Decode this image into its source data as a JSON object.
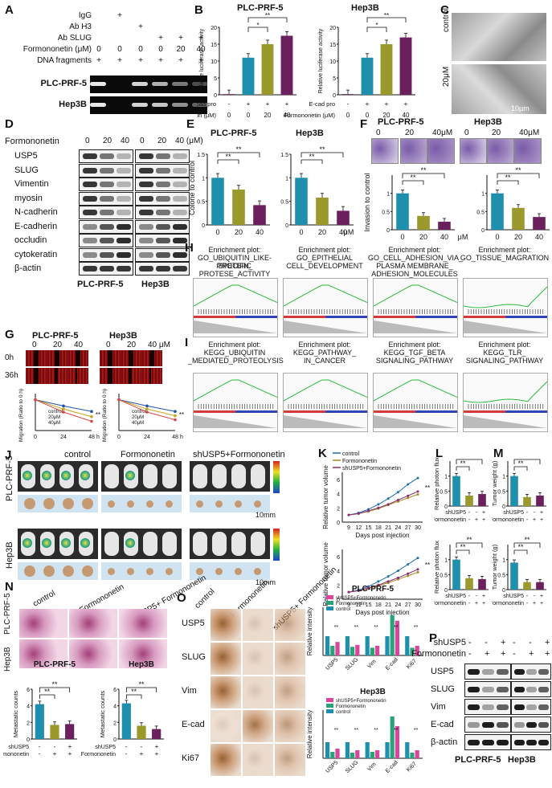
{
  "panels": {
    "A": {
      "label": "A",
      "rows": [
        {
          "name": "IgG",
          "vals": [
            "",
            "+",
            "",
            "",
            "",
            ""
          ]
        },
        {
          "name": "Ab H3",
          "vals": [
            "",
            "",
            "+",
            "",
            "",
            ""
          ]
        },
        {
          "name": "Ab SLUG",
          "vals": [
            "",
            "",
            "",
            "+",
            "+",
            "+"
          ]
        },
        {
          "name": "Formononetin (μM)",
          "vals": [
            "0",
            "0",
            "0",
            "0",
            "20",
            "40"
          ]
        },
        {
          "name": "DNA fragments",
          "vals": [
            "+",
            "+",
            "+",
            "+",
            "+",
            "+"
          ]
        }
      ],
      "cells": [
        "PLC-PRF-5",
        "Hep3B"
      ]
    },
    "B": {
      "label": "B",
      "ylabel": "Relative luciferase activity",
      "row1": "E-cad pro",
      "row2": "Formononetin (μM)",
      "r1vals": [
        "-",
        "+",
        "+",
        "+"
      ],
      "r2vals": [
        "0",
        "0",
        "20",
        "40"
      ],
      "sig": [
        "**",
        "*",
        "**",
        "*"
      ]
    },
    "C": {
      "label": "C",
      "control": "control",
      "treated": "20μM",
      "scale": "10μm"
    },
    "D": {
      "label": "D",
      "header": "Formononetin",
      "doses": [
        "0",
        "20",
        "40",
        "0",
        "20",
        "40 (μM)"
      ],
      "proteins": [
        "USP5",
        "SLUG",
        "Vimentin",
        "myosin",
        "N-cadherin",
        "E-cadherin",
        "occludin",
        "cytokeratin",
        "β-actin"
      ],
      "cells": [
        "PLC-PRF-5",
        "Hep3B"
      ]
    },
    "E": {
      "label": "E",
      "ylabel": "Colone to control",
      "xunit": "μM",
      "sig": "**"
    },
    "F": {
      "label": "F",
      "cells": [
        "PLC-PRF-5",
        "Hep3B"
      ],
      "doses": [
        "0",
        "20",
        "40μM"
      ],
      "ylabel": "Invasion to control",
      "xunit": "μM",
      "sig": "**"
    },
    "G": {
      "label": "G",
      "cells": [
        "PLC-PRF-5",
        "Hep3B"
      ],
      "doses": [
        "0",
        "20",
        "40",
        "0",
        "20",
        "40 μM"
      ],
      "times": [
        "0h",
        "36h"
      ],
      "ylabel": "Migration (Ratio to 0 h)",
      "legend": [
        "control",
        "20μM",
        "40μM"
      ],
      "xunit": "h",
      "sig": "**"
    },
    "H": {
      "label": "H",
      "plots": [
        {
          "l1": "Enrichment plot:",
          "l2": "GO_UBIQUITIN_LIKE-PROTEIN_",
          "l3": "SPECIFIC PROTESE_ACTIVITY"
        },
        {
          "l1": "Enrichment plot:",
          "l2": "GO_EPITHELIAL",
          "l3": "CELL_DEVELOPMENT"
        },
        {
          "l1": "Enrichment plot:",
          "l2": "GO_CELL_ADHESION_VIA_",
          "l3": "PLASMA MEMBRANE_",
          "l4": "ADHESION_MOLECULES"
        },
        {
          "l1": "Enrichment plot:",
          "l2": "GO_TISSUE_MAGRATION",
          "l3": ""
        }
      ]
    },
    "I": {
      "label": "I",
      "plots": [
        {
          "l1": "Enrichment plot:",
          "l2": "KEGG_UBIQUITIN",
          "l3": "_MEDIATED_PROTEOLYSIS"
        },
        {
          "l1": "Enrichment plot:",
          "l2": "KEGG_PATHWAY_",
          "l3": "IN_CANCER"
        },
        {
          "l1": "Enrichment plot:",
          "l2": "KEGG_TGF_BETA",
          "l3": "SIGNALING_PATHWAY"
        },
        {
          "l1": "Enrichment plot:",
          "l2": "KEGG_TLR_",
          "l3": "SIGNALING_PATHWAY"
        }
      ]
    },
    "J": {
      "label": "J",
      "groups": [
        "control",
        "Formononetin",
        "shUSP5+Formononetin"
      ],
      "cells": [
        "PLC-PRF-5",
        "Hep3B"
      ],
      "scale": "10mm"
    },
    "K": {
      "label": "K",
      "legend": [
        "control",
        "Formononetin",
        "shUSP5+Formononetin"
      ],
      "ylabel": "Relative tumor volume",
      "xlabel": "Days post injection",
      "xticks": [
        "9",
        "12",
        "15",
        "18",
        "21",
        "24",
        "27",
        "30"
      ],
      "sig": "**"
    },
    "L": {
      "label": "L",
      "ylabel": "Relative photon flux",
      "rows": [
        "shUSP5",
        "Formononetin"
      ],
      "r1": [
        "-",
        "-",
        "+"
      ],
      "r2": [
        "-",
        "+",
        "+"
      ],
      "sig": "**"
    },
    "M": {
      "label": "M",
      "ylabel": "Tumor weight (g)",
      "rows": [
        "shUSP5",
        "Formononetin"
      ],
      "r1": [
        "-",
        "-",
        "+"
      ],
      "r2": [
        "-",
        "+",
        "+"
      ],
      "sig": "**"
    },
    "N": {
      "label": "N",
      "groups": [
        "control",
        "Formononetin",
        "shUSP5+ Formononetin"
      ],
      "cells": [
        "PLC-PRF-5",
        "Hep3B"
      ],
      "ylabel": "Metastatic counts",
      "rows": [
        "shUSP5",
        "Formononetin"
      ],
      "r1": [
        "-",
        "-",
        "+"
      ],
      "r2": [
        "-",
        "+",
        "+"
      ],
      "sig": "**"
    },
    "O": {
      "label": "O",
      "groups": [
        "control",
        "Formononetin",
        "shUSP5+ Formononetin"
      ],
      "proteins": [
        "USP5",
        "SLUG",
        "Vim",
        "E-cad",
        "Ki67"
      ],
      "cells": [
        "PLC-PRF-5",
        "Hep3B"
      ],
      "ylabel": "Relative intensity",
      "legend": [
        "shUSP5+Formononetin",
        "Formononetin",
        "control"
      ],
      "sig": "**"
    },
    "P": {
      "label": "P",
      "rows": [
        "shUSP5",
        "Formononetin"
      ],
      "r1": [
        "-",
        "-",
        "+",
        "-",
        "-",
        "+"
      ],
      "r2": [
        "-",
        "+",
        "+",
        "-",
        "+",
        "+"
      ],
      "proteins": [
        "USP5",
        "SLUG",
        "Vim",
        "E-cad",
        "β-actin"
      ],
      "cells": [
        "PLC-PRF-5",
        "Hep3B"
      ]
    }
  },
  "colors": {
    "teal": "#1f8fae",
    "olive": "#9a9a2c",
    "purple": "#6b1f5c",
    "pink": "#d9459a",
    "green": "#2aa37a"
  },
  "chart_data": [
    {
      "type": "bar",
      "panel": "B",
      "title": "PLC-PRF-5",
      "categories": [
        "-/0",
        "+/0",
        "+/20",
        "+/40"
      ],
      "values": [
        0.2,
        11,
        15,
        17.5
      ],
      "ylim": [
        0,
        20
      ]
    },
    {
      "type": "bar",
      "panel": "B",
      "title": "Hep3B",
      "categories": [
        "-/0",
        "+/0",
        "+/20",
        "+/40"
      ],
      "values": [
        0.2,
        11,
        15,
        17
      ],
      "ylim": [
        0,
        20
      ]
    },
    {
      "type": "bar",
      "panel": "E",
      "title": "PLC-PRF-5",
      "categories": [
        "0",
        "20",
        "40"
      ],
      "values": [
        1.0,
        0.75,
        0.42
      ],
      "ylim": [
        0,
        1.5
      ]
    },
    {
      "type": "bar",
      "panel": "E",
      "title": "Hep3B",
      "categories": [
        "0",
        "20",
        "40"
      ],
      "values": [
        1.0,
        0.58,
        0.3
      ],
      "ylim": [
        0,
        1.5
      ]
    },
    {
      "type": "bar",
      "panel": "F",
      "title": "PLC-PRF-5",
      "categories": [
        "0",
        "20",
        "40"
      ],
      "values": [
        1.0,
        0.38,
        0.22
      ],
      "ylim": [
        0,
        1.5
      ]
    },
    {
      "type": "bar",
      "panel": "F",
      "title": "Hep3B",
      "categories": [
        "0",
        "20",
        "40"
      ],
      "values": [
        1.0,
        0.6,
        0.35
      ],
      "ylim": [
        0,
        1.5
      ]
    },
    {
      "type": "line",
      "panel": "G",
      "title": "PLC-PRF-5",
      "x": [
        0,
        24,
        48
      ],
      "series": [
        {
          "name": "control",
          "values": [
            1.0,
            0.8,
            0.62
          ]
        },
        {
          "name": "20μM",
          "values": [
            1.0,
            0.7,
            0.45
          ]
        },
        {
          "name": "40μM",
          "values": [
            1.0,
            0.6,
            0.3
          ]
        }
      ],
      "ylim": [
        0,
        1.2
      ]
    },
    {
      "type": "line",
      "panel": "G",
      "title": "Hep3B",
      "x": [
        0,
        24,
        48
      ],
      "series": [
        {
          "name": "control",
          "values": [
            1.0,
            0.8,
            0.62
          ]
        },
        {
          "name": "20μM",
          "values": [
            1.0,
            0.7,
            0.48
          ]
        },
        {
          "name": "40μM",
          "values": [
            1.0,
            0.6,
            0.35
          ]
        }
      ],
      "ylim": [
        0,
        1.2
      ]
    },
    {
      "type": "line",
      "panel": "K",
      "title": "",
      "x": [
        9,
        12,
        15,
        18,
        21,
        24,
        27,
        30
      ],
      "series": [
        {
          "name": "control",
          "values": [
            1,
            1.3,
            1.8,
            2.5,
            3.3,
            4.2,
            5.3,
            6.2
          ]
        },
        {
          "name": "Formononetin",
          "values": [
            1,
            1.2,
            1.5,
            1.9,
            2.4,
            2.9,
            3.4,
            3.9
          ]
        },
        {
          "name": "shUSP5+Formononetin",
          "values": [
            1,
            1.2,
            1.6,
            2.0,
            2.5,
            3.1,
            3.7,
            4.3
          ]
        }
      ],
      "ylim": [
        0,
        7
      ]
    },
    {
      "type": "line",
      "panel": "K",
      "title": "",
      "x": [
        9,
        12,
        15,
        18,
        21,
        24,
        27,
        30
      ],
      "series": [
        {
          "name": "control",
          "values": [
            1,
            1.3,
            1.8,
            2.5,
            3.2,
            4.0,
            4.9,
            5.8
          ]
        },
        {
          "name": "Formononetin",
          "values": [
            1,
            1.2,
            1.5,
            1.9,
            2.3,
            2.8,
            3.3,
            3.8
          ]
        },
        {
          "name": "shUSP5+Formononetin",
          "values": [
            1,
            1.2,
            1.6,
            2.0,
            2.5,
            3.0,
            3.6,
            4.2
          ]
        }
      ],
      "ylim": [
        0,
        7
      ]
    },
    {
      "type": "bar",
      "panel": "L",
      "title": "",
      "categories": [
        "-/-",
        "-/+",
        "+/+"
      ],
      "values": [
        1.0,
        0.35,
        0.4
      ],
      "ylim": [
        0,
        1.5
      ]
    },
    {
      "type": "bar",
      "panel": "L",
      "title": "",
      "categories": [
        "-/-",
        "-/+",
        "+/+"
      ],
      "values": [
        1.0,
        0.38,
        0.35
      ],
      "ylim": [
        0,
        1.5
      ]
    },
    {
      "type": "bar",
      "panel": "M",
      "title": "",
      "categories": [
        "-/-",
        "-/+",
        "+/+"
      ],
      "values": [
        1.0,
        0.3,
        0.35
      ],
      "ylim": [
        0,
        1.5
      ]
    },
    {
      "type": "bar",
      "panel": "M",
      "title": "",
      "categories": [
        "-/-",
        "-/+",
        "+/+"
      ],
      "values": [
        0.9,
        0.25,
        0.25
      ],
      "ylim": [
        0,
        1.5
      ]
    },
    {
      "type": "bar",
      "panel": "N",
      "title": "PLC-PRF-5",
      "categories": [
        "-/-",
        "-/+",
        "+/+"
      ],
      "values": [
        4.2,
        1.7,
        1.8
      ],
      "ylim": [
        0,
        6
      ]
    },
    {
      "type": "bar",
      "panel": "N",
      "title": "Hep3B",
      "categories": [
        "-/-",
        "-/+",
        "+/+"
      ],
      "values": [
        4.3,
        1.6,
        1.2
      ],
      "ylim": [
        0,
        6
      ]
    },
    {
      "type": "bar",
      "panel": "O",
      "title": "PLC-PRF-5",
      "categories": [
        "USP5",
        "SLUG",
        "Vim",
        "E-cad",
        "Ki67"
      ],
      "series": [
        {
          "name": "control",
          "values": [
            1,
            1,
            1,
            1,
            1
          ]
        },
        {
          "name": "Formononetin",
          "values": [
            0.5,
            0.45,
            0.4,
            2.1,
            0.4
          ]
        },
        {
          "name": "shUSP5+Formononetin",
          "values": [
            0.7,
            0.55,
            0.5,
            1.8,
            0.5
          ]
        }
      ],
      "ylim": [
        0,
        2.5
      ]
    },
    {
      "type": "bar",
      "panel": "O",
      "title": "Hep3B",
      "categories": [
        "USP5",
        "SLUG",
        "Vim",
        "E-cad",
        "Ki67"
      ],
      "series": [
        {
          "name": "control",
          "values": [
            1,
            1,
            1,
            1,
            1
          ]
        },
        {
          "name": "Formononetin",
          "values": [
            0.4,
            0.35,
            0.4,
            2.6,
            0.35
          ]
        },
        {
          "name": "shUSP5+Formononetin",
          "values": [
            0.6,
            0.5,
            0.5,
            2.0,
            0.5
          ]
        }
      ],
      "ylim": [
        0,
        3
      ]
    }
  ]
}
